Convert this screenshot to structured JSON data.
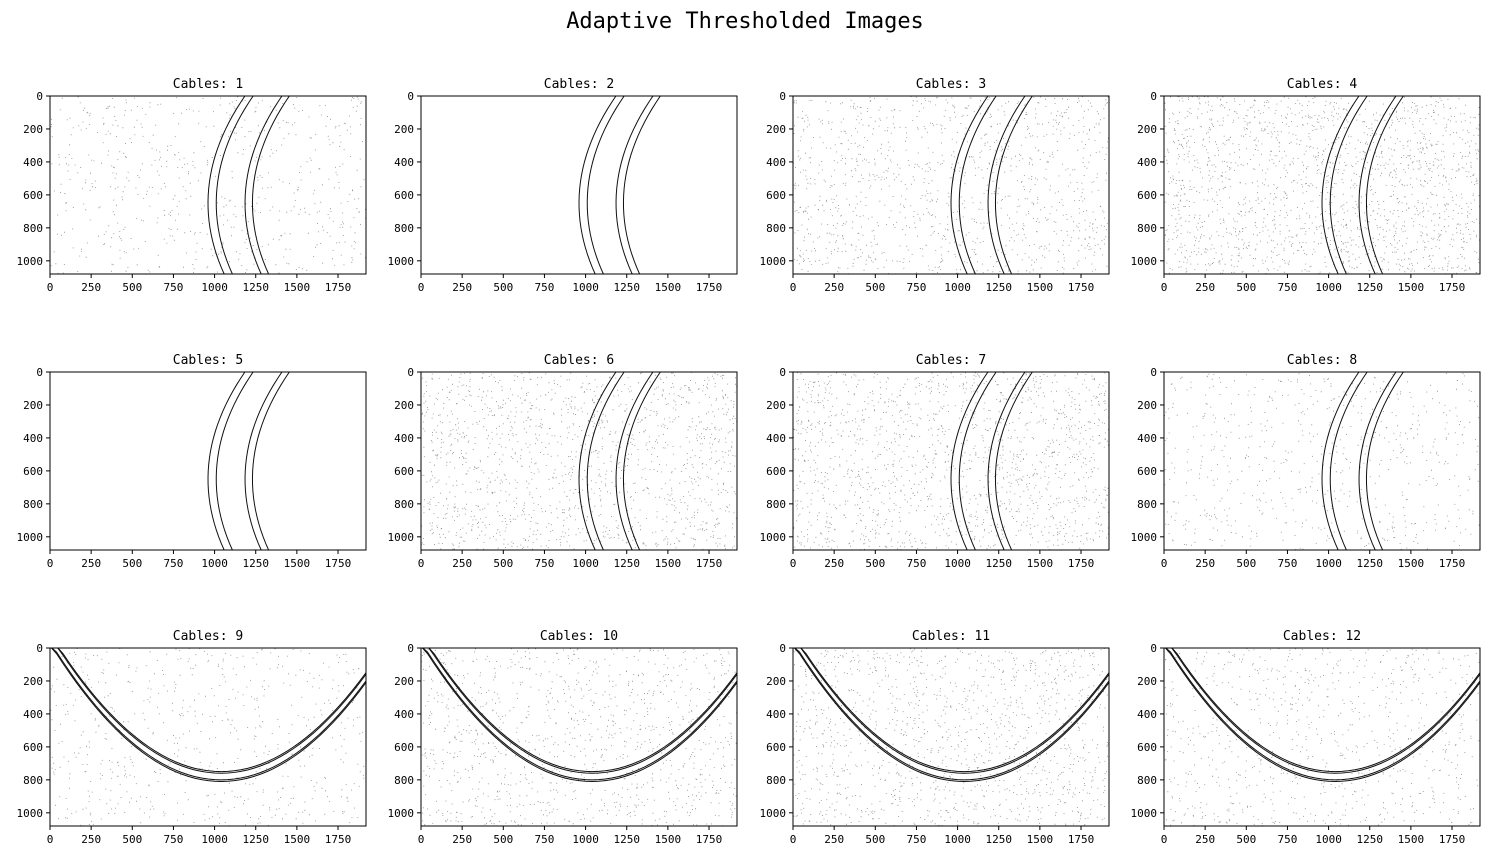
{
  "figure": {
    "title": "Adaptive Thresholded Images",
    "background": "#ffffff",
    "ink": "#000000"
  },
  "chart_data": {
    "type": "image-grid",
    "rows": 3,
    "cols": 4,
    "image_width": 1920,
    "image_height": 1080,
    "xticks": [
      0,
      250,
      500,
      750,
      1000,
      1250,
      1500,
      1750
    ],
    "yticks": [
      0,
      200,
      400,
      600,
      800,
      1000
    ],
    "panels": [
      {
        "title": "Cables: 1",
        "shape": "arc",
        "noise": 0.35
      },
      {
        "title": "Cables: 2",
        "shape": "arc",
        "noise": 0.0
      },
      {
        "title": "Cables: 3",
        "shape": "arc",
        "noise": 0.65
      },
      {
        "title": "Cables: 4",
        "shape": "arc",
        "noise": 1.0
      },
      {
        "title": "Cables: 5",
        "shape": "arc",
        "noise": 0.0
      },
      {
        "title": "Cables: 6",
        "shape": "arc",
        "noise": 0.8
      },
      {
        "title": "Cables: 7",
        "shape": "arc",
        "noise": 0.85
      },
      {
        "title": "Cables: 8",
        "shape": "arc",
        "noise": 0.35
      },
      {
        "title": "Cables: 9",
        "shape": "u-curve",
        "noise": 0.35
      },
      {
        "title": "Cables: 10",
        "shape": "u-curve",
        "noise": 0.6
      },
      {
        "title": "Cables: 11",
        "shape": "u-curve",
        "noise": 0.7
      },
      {
        "title": "Cables: 12",
        "shape": "u-curve",
        "noise": 0.45
      }
    ]
  }
}
